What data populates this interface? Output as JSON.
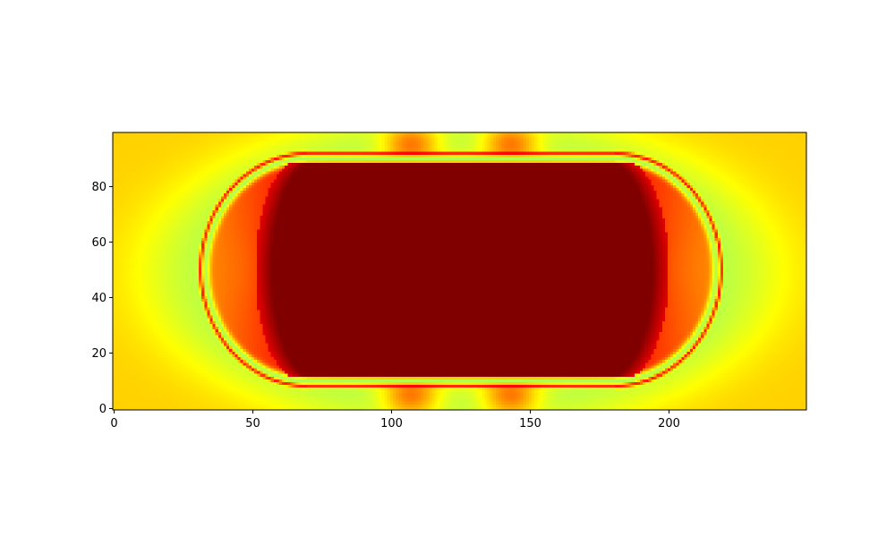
{
  "chart_data": {
    "type": "heatmap",
    "title": "",
    "xlabel": "",
    "ylabel": "",
    "colormap": "jet",
    "xlim": [
      -0.5,
      249.5
    ],
    "ylim": [
      -0.5,
      99.5
    ],
    "origin": "lower",
    "grid": false,
    "xticks": [
      0,
      50,
      100,
      150,
      200
    ],
    "yticks": [
      0,
      20,
      40,
      60,
      80
    ],
    "xtick_labels": [
      "0",
      "50",
      "100",
      "150",
      "200"
    ],
    "ytick_labels": [
      "0",
      "20",
      "40",
      "60",
      "80"
    ],
    "field": {
      "background_value": 0.67,
      "outer_ellipse_halo": {
        "center_x": 125,
        "center_y": 49,
        "radius_x": 118,
        "radius_y": 60,
        "value": 0.55
      },
      "stadium_ring": {
        "center_y": 50,
        "straight_x_range": [
          70,
          180
        ],
        "half_height": 40,
        "left_cap_center_x": 70,
        "right_cap_center_x": 180,
        "cap_radius": 37,
        "value": 0.55
      },
      "inner_stadium": {
        "straight_x_range": [
          72,
          178
        ],
        "y_range": [
          11,
          89
        ],
        "end_extent_left": 57,
        "end_extent_right": 194,
        "value": 1.0
      },
      "hot_lobes": [
        {
          "center_x": 107,
          "center_y": 95,
          "value": 0.78
        },
        {
          "center_x": 143,
          "center_y": 95,
          "value": 0.78
        },
        {
          "center_x": 107,
          "center_y": 5,
          "value": 0.78
        },
        {
          "center_x": 143,
          "center_y": 5,
          "value": 0.78
        }
      ],
      "cool_spots": [
        {
          "center_x": 46,
          "center_y": 50,
          "value": 0.47
        },
        {
          "center_x": 206,
          "center_y": 50,
          "value": 0.47
        }
      ]
    }
  }
}
